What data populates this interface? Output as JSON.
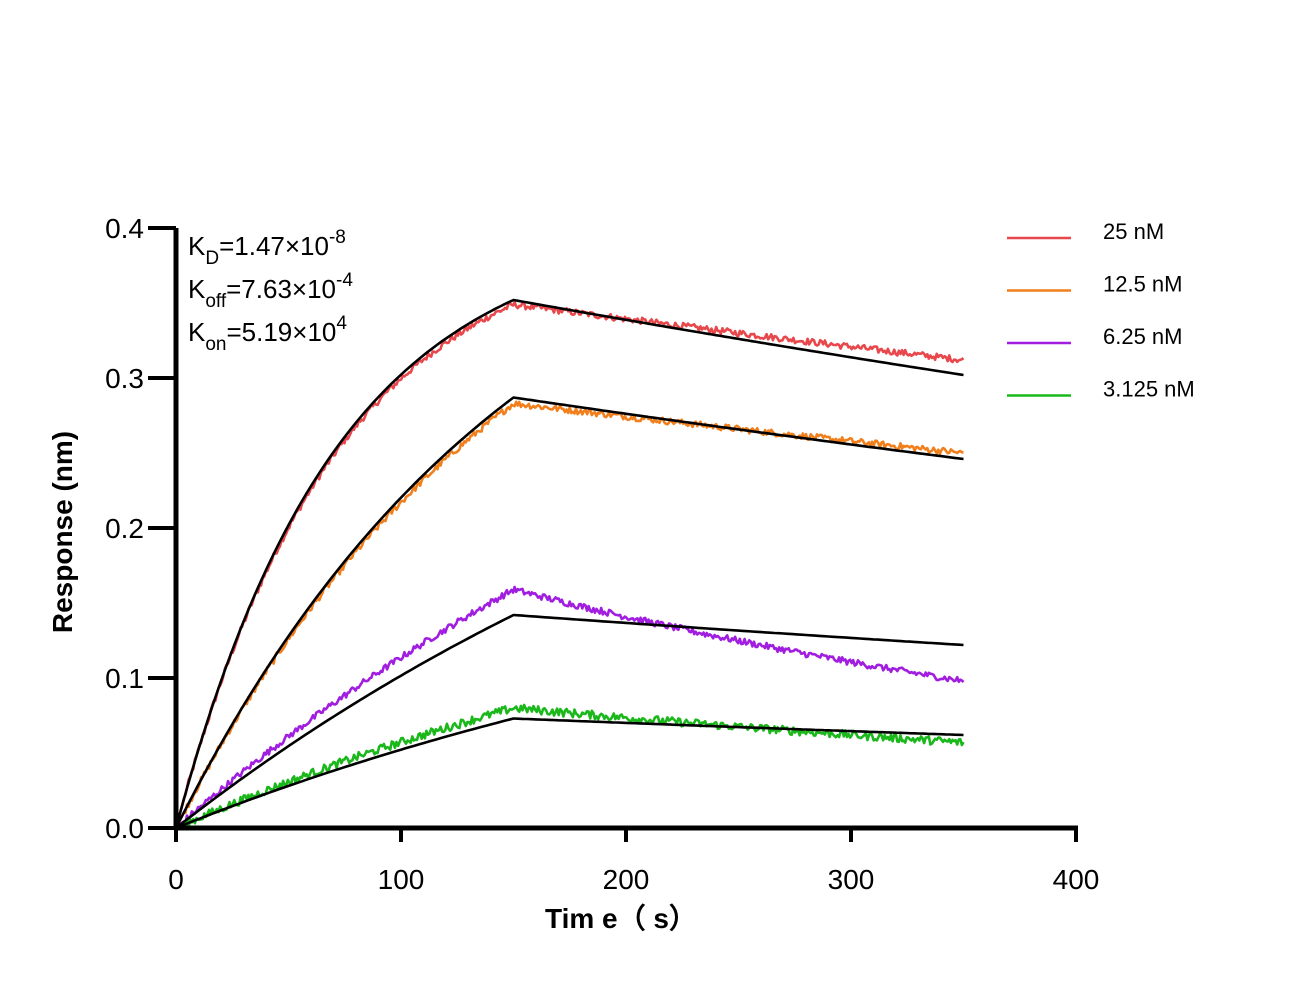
{
  "chart_data": {
    "type": "line",
    "title": "",
    "xlabel": "Tim e（ s）",
    "ylabel": "Response (nm)",
    "xlim": [
      0,
      400
    ],
    "ylim": [
      0,
      0.4
    ],
    "x_ticks": [
      "0",
      "100",
      "200",
      "300",
      "400"
    ],
    "y_ticks": [
      "0.0",
      "0.1",
      "0.2",
      "0.3",
      "0.4"
    ],
    "grid": false,
    "legend_position": "top-right",
    "association_end": 150,
    "dissociation_end": 350,
    "annotations": [
      {
        "base": "K",
        "sub": "D",
        "text": "=1.47×10",
        "sup": "-8"
      },
      {
        "base": "K",
        "sub": "off",
        "text": "=7.63×10",
        "sup": "-4"
      },
      {
        "base": "K",
        "sub": "on",
        "text": "=5.19×10",
        "sup": "4"
      }
    ],
    "series": [
      {
        "name": "25 nM",
        "color": "#e8474b",
        "measured_peak": 0.349,
        "measured_end": 0.312,
        "fit_peak": 0.352,
        "fit_end": 0.302,
        "shape_k": 0.014,
        "noise": 0.0022
      },
      {
        "name": "12.5 nM",
        "color": "#f07f1c",
        "measured_peak": 0.283,
        "measured_end": 0.25,
        "fit_peak": 0.287,
        "fit_end": 0.246,
        "shape_k": 0.0065,
        "noise": 0.0022
      },
      {
        "name": "6.25 nM",
        "color": "#a11ee0",
        "measured_peak": 0.159,
        "measured_end": 0.098,
        "fit_peak": 0.142,
        "fit_end": 0.122,
        "shape_k": 0.003,
        "noise": 0.0022
      },
      {
        "name": "3.125 nM",
        "color": "#1ab81a",
        "measured_peak": 0.08,
        "measured_end": 0.057,
        "fit_peak": 0.073,
        "fit_end": 0.062,
        "shape_k": 0.003,
        "noise": 0.0028
      }
    ]
  }
}
